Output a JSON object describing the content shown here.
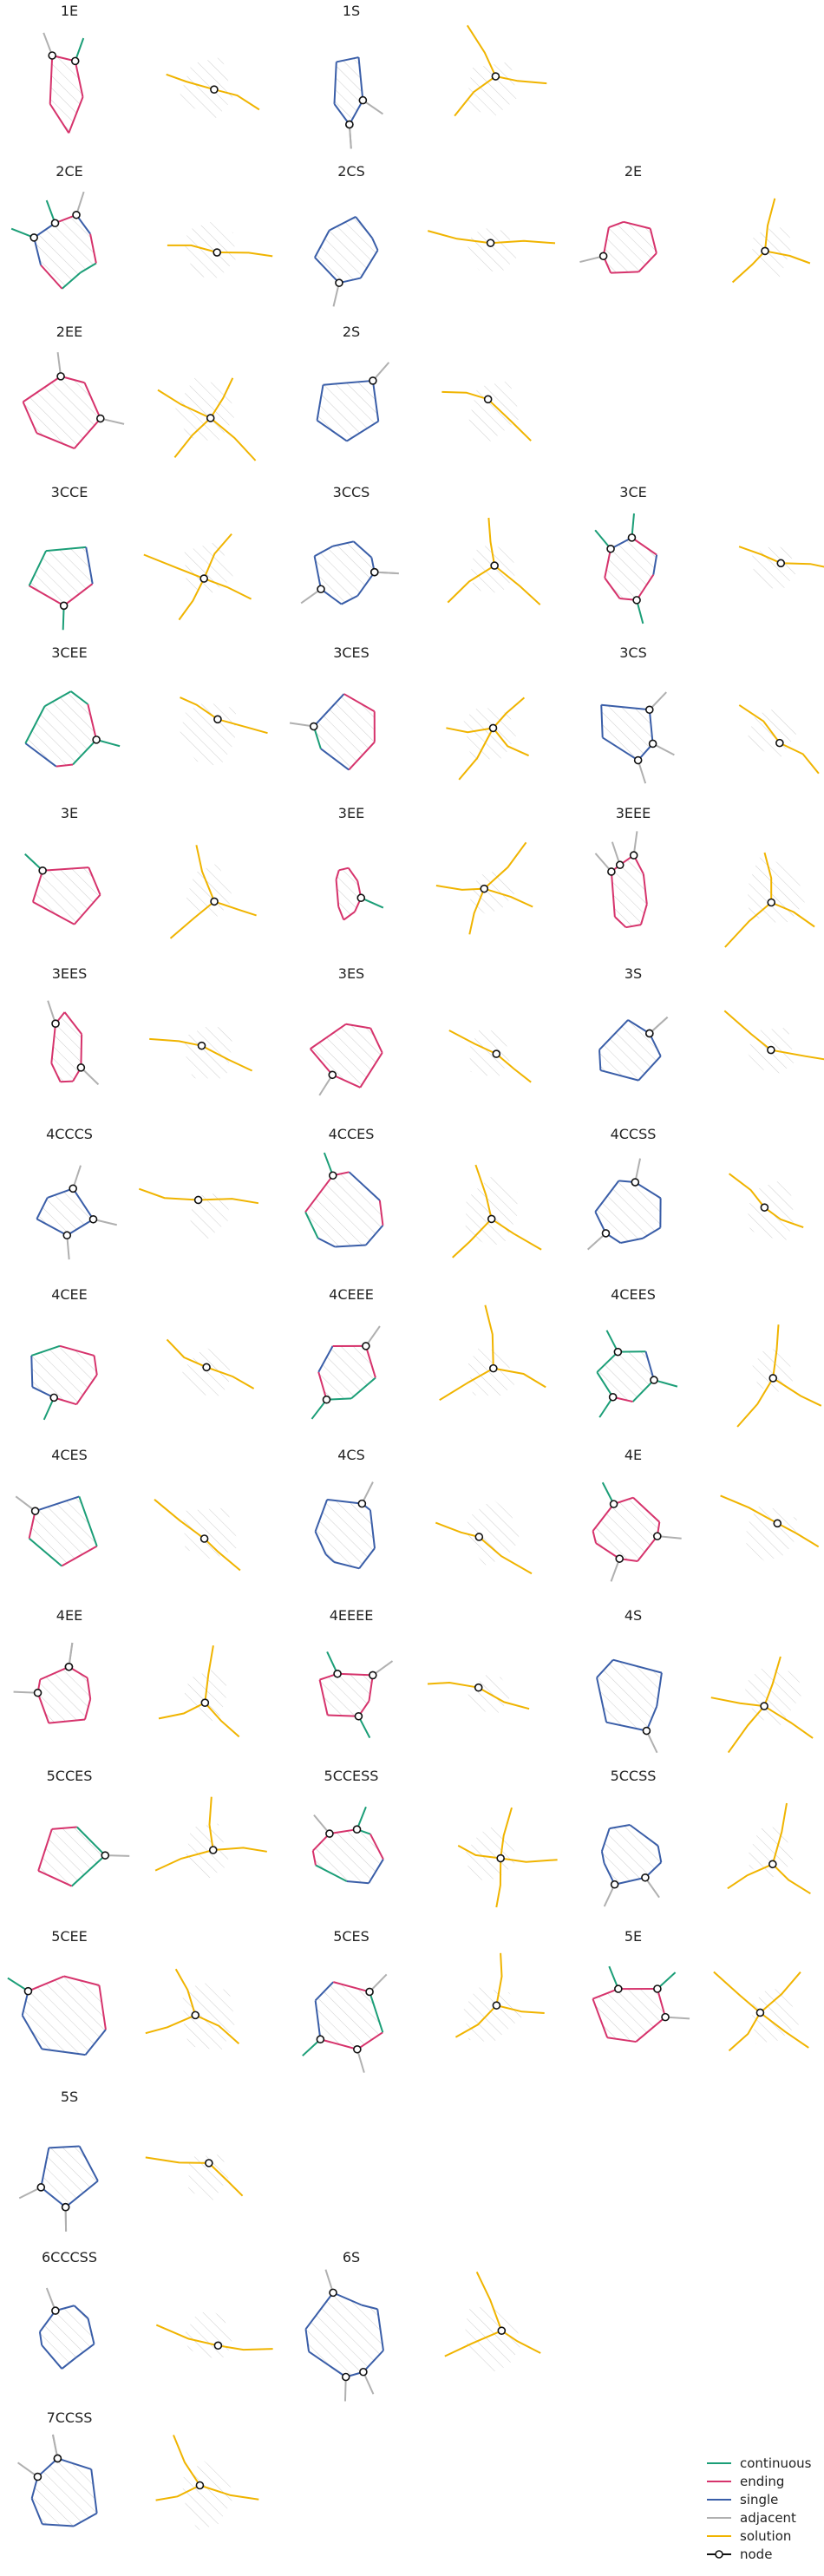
{
  "colors": {
    "continuous": "#1b9e77",
    "ending": "#d6336c",
    "single": "#3a5ea8",
    "adjacent": "#b0b0b0",
    "solution": "#f0b400",
    "hatch": "#cfcfcf",
    "node_stroke": "#111111",
    "node_fill": "#ffffff"
  },
  "legend": {
    "items": [
      {
        "key": "continuous",
        "label": "continuous",
        "icon": "line"
      },
      {
        "key": "ending",
        "label": "ending",
        "icon": "line"
      },
      {
        "key": "single",
        "label": "single",
        "icon": "line"
      },
      {
        "key": "adjacent",
        "label": "adjacent",
        "icon": "line"
      },
      {
        "key": "solution",
        "label": "solution",
        "icon": "line"
      },
      {
        "key": "node_stroke",
        "label": "node",
        "icon": "line-with-circle"
      }
    ]
  },
  "panels": [
    {
      "title": "1E"
    },
    {
      "title": "1S"
    },
    {
      "title": "2CE"
    },
    {
      "title": "2CS"
    },
    {
      "title": "2E"
    },
    {
      "title": "2EE"
    },
    {
      "title": "2S"
    },
    {
      "title": "3CCE"
    },
    {
      "title": "3CCS"
    },
    {
      "title": "3CE"
    },
    {
      "title": "3CEE"
    },
    {
      "title": "3CES"
    },
    {
      "title": "3CS"
    },
    {
      "title": "3E"
    },
    {
      "title": "3EE"
    },
    {
      "title": "3EEE"
    },
    {
      "title": "3EES"
    },
    {
      "title": "3ES"
    },
    {
      "title": "3S"
    },
    {
      "title": "4CCCS"
    },
    {
      "title": "4CCES"
    },
    {
      "title": "4CCSS"
    },
    {
      "title": "4CEE"
    },
    {
      "title": "4CEEE"
    },
    {
      "title": "4CEES"
    },
    {
      "title": "4CES"
    },
    {
      "title": "4CS"
    },
    {
      "title": "4E"
    },
    {
      "title": "4EE"
    },
    {
      "title": "4EEEE"
    },
    {
      "title": "4S"
    },
    {
      "title": "5CCES"
    },
    {
      "title": "5CCESS"
    },
    {
      "title": "5CCSS"
    },
    {
      "title": "5CEE"
    },
    {
      "title": "5CES"
    },
    {
      "title": "5E"
    },
    {
      "title": "5S"
    },
    {
      "title": "6CCCSS"
    },
    {
      "title": "6S"
    },
    {
      "title": "7CCSS"
    }
  ]
}
